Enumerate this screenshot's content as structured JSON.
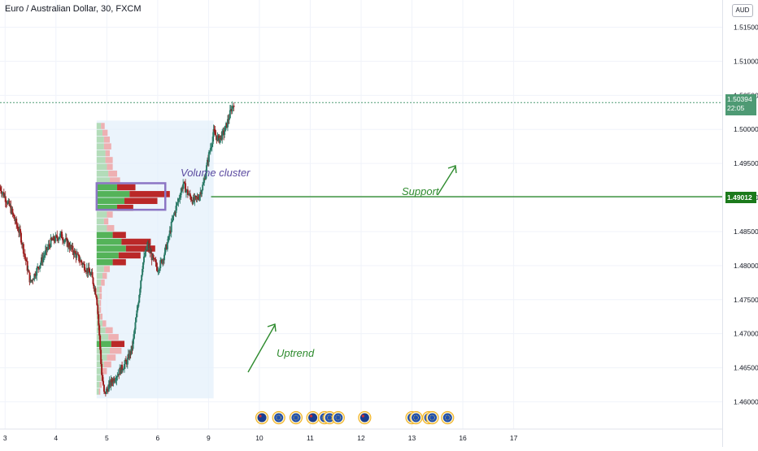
{
  "header": {
    "title": "Euro / Australian Dollar, 30, FXCM",
    "currency": "AUD"
  },
  "price_tags": {
    "last_price": "1.50394",
    "countdown": "22:05",
    "support_price": "1.49012"
  },
  "annotations": {
    "volume_cluster": "Volume cluster",
    "support": "Support",
    "uptrend": "Uptrend"
  },
  "colors": {
    "up": "#26a69a",
    "down": "#ef5350",
    "support_line": "#2e8b2e",
    "cluster_box": "#8b75c4",
    "profile_up": "#4caf50",
    "profile_down": "#b71c1c",
    "range_fill": "#e3f0fb"
  },
  "chart_data": {
    "type": "candlestick",
    "title": "Euro / Australian Dollar, 30, FXCM",
    "ylim": [
      1.456,
      1.519
    ],
    "xlim": [
      2.9,
      17.1
    ],
    "y_ticks": [
      1.46,
      1.465,
      1.47,
      1.475,
      1.48,
      1.485,
      1.49,
      1.495,
      1.5,
      1.505,
      1.51,
      1.515
    ],
    "y_tick_labels": [
      "1.46000",
      "1.46500",
      "1.47000",
      "1.47500",
      "1.48000",
      "1.48500",
      "1.49000",
      "1.49500",
      "1.50000",
      "1.50500",
      "1.51000",
      "1.51500"
    ],
    "x_ticks": [
      3,
      4,
      5,
      6,
      9,
      10,
      11,
      12,
      13,
      16,
      17
    ],
    "x_tick_labels": [
      "3",
      "4",
      "5",
      "6",
      "9",
      "10",
      "11",
      "12",
      "13",
      "16",
      "17"
    ],
    "x_tick_pos": [
      3,
      4,
      5,
      6,
      7,
      8,
      9,
      10,
      11,
      12,
      13
    ],
    "price_path": [
      [
        2.9,
        1.4915
      ],
      [
        3.1,
        1.4885
      ],
      [
        3.3,
        1.4845
      ],
      [
        3.5,
        1.4775
      ],
      [
        3.7,
        1.4805
      ],
      [
        3.9,
        1.4835
      ],
      [
        4.1,
        1.4845
      ],
      [
        4.3,
        1.4825
      ],
      [
        4.5,
        1.4805
      ],
      [
        4.7,
        1.4785
      ],
      [
        4.8,
        1.4755
      ],
      [
        4.85,
        1.47
      ],
      [
        4.9,
        1.464
      ],
      [
        4.95,
        1.461
      ],
      [
        5.05,
        1.4625
      ],
      [
        5.2,
        1.464
      ],
      [
        5.4,
        1.466
      ],
      [
        5.5,
        1.468
      ],
      [
        5.6,
        1.4735
      ],
      [
        5.7,
        1.48
      ],
      [
        5.8,
        1.483
      ],
      [
        5.9,
        1.481
      ],
      [
        6.0,
        1.4795
      ],
      [
        6.1,
        1.481
      ],
      [
        6.2,
        1.4835
      ],
      [
        6.3,
        1.487
      ],
      [
        6.4,
        1.4895
      ],
      [
        6.5,
        1.492
      ],
      [
        6.6,
        1.4905
      ],
      [
        6.7,
        1.4895
      ],
      [
        6.8,
        1.49
      ],
      [
        6.9,
        1.492
      ],
      [
        7.0,
        1.496
      ],
      [
        7.1,
        1.4995
      ],
      [
        7.2,
        1.4985
      ],
      [
        7.3,
        1.4995
      ],
      [
        7.35,
        1.5005
      ],
      [
        7.45,
        1.503
      ],
      [
        7.5,
        1.5039
      ]
    ],
    "support_level": 1.49012,
    "last_price": 1.50394,
    "volume_cluster_box": {
      "x": [
        4.8,
        6.15
      ],
      "y": [
        1.4882,
        1.4921
      ]
    },
    "range_shade": {
      "x": [
        4.8,
        7.1
      ],
      "y": [
        1.4605,
        1.5013
      ]
    },
    "volume_profile": {
      "x_base": 4.8,
      "levels": [
        {
          "p": 1.5005,
          "up": 0.06,
          "down": 0.05
        },
        {
          "p": 1.4995,
          "up": 0.08,
          "down": 0.07
        },
        {
          "p": 1.4985,
          "up": 0.1,
          "down": 0.08
        },
        {
          "p": 1.4975,
          "up": 0.1,
          "down": 0.1
        },
        {
          "p": 1.4965,
          "up": 0.12,
          "down": 0.06
        },
        {
          "p": 1.4955,
          "up": 0.12,
          "down": 0.1
        },
        {
          "p": 1.4945,
          "up": 0.14,
          "down": 0.08
        },
        {
          "p": 1.4935,
          "up": 0.16,
          "down": 0.12
        },
        {
          "p": 1.4925,
          "up": 0.18,
          "down": 0.14
        },
        {
          "p": 1.4915,
          "up": 0.28,
          "down": 0.25
        },
        {
          "p": 1.4905,
          "up": 0.45,
          "down": 0.55
        },
        {
          "p": 1.4895,
          "up": 0.38,
          "down": 0.45
        },
        {
          "p": 1.4885,
          "up": 0.28,
          "down": 0.22
        },
        {
          "p": 1.4875,
          "up": 0.14,
          "down": 0.08
        },
        {
          "p": 1.4865,
          "up": 0.1,
          "down": 0.06
        },
        {
          "p": 1.4855,
          "up": 0.14,
          "down": 0.1
        },
        {
          "p": 1.4845,
          "up": 0.22,
          "down": 0.18
        },
        {
          "p": 1.4835,
          "up": 0.34,
          "down": 0.4
        },
        {
          "p": 1.4825,
          "up": 0.4,
          "down": 0.4
        },
        {
          "p": 1.4815,
          "up": 0.3,
          "down": 0.3
        },
        {
          "p": 1.4805,
          "up": 0.22,
          "down": 0.18
        },
        {
          "p": 1.4795,
          "up": 0.1,
          "down": 0.08
        },
        {
          "p": 1.4785,
          "up": 0.08,
          "down": 0.06
        },
        {
          "p": 1.4775,
          "up": 0.06,
          "down": 0.05
        },
        {
          "p": 1.4765,
          "up": 0.04,
          "down": 0.03
        },
        {
          "p": 1.4755,
          "up": 0.04,
          "down": 0.03
        },
        {
          "p": 1.4745,
          "up": 0.04,
          "down": 0.02
        },
        {
          "p": 1.4735,
          "up": 0.04,
          "down": 0.02
        },
        {
          "p": 1.4725,
          "up": 0.05,
          "down": 0.03
        },
        {
          "p": 1.4715,
          "up": 0.08,
          "down": 0.05
        },
        {
          "p": 1.4705,
          "up": 0.12,
          "down": 0.1
        },
        {
          "p": 1.4695,
          "up": 0.16,
          "down": 0.14
        },
        {
          "p": 1.4685,
          "up": 0.2,
          "down": 0.18
        },
        {
          "p": 1.4675,
          "up": 0.18,
          "down": 0.16
        },
        {
          "p": 1.4665,
          "up": 0.14,
          "down": 0.12
        },
        {
          "p": 1.4655,
          "up": 0.1,
          "down": 0.1
        },
        {
          "p": 1.4645,
          "up": 0.08,
          "down": 0.06
        },
        {
          "p": 1.4635,
          "up": 0.06,
          "down": 0.04
        },
        {
          "p": 1.4625,
          "up": 0.04,
          "down": 0.03
        },
        {
          "p": 1.4615,
          "up": 0.03,
          "down": 0.02
        }
      ]
    },
    "events": [
      {
        "x": 8.05,
        "flag": "AU"
      },
      {
        "x": 8.38,
        "flag": "EU"
      },
      {
        "x": 8.72,
        "flag": "EU"
      },
      {
        "x": 9.05,
        "flag": "AU"
      },
      {
        "x": 9.28,
        "flag": "EU"
      },
      {
        "x": 9.38,
        "flag": "EU"
      },
      {
        "x": 9.55,
        "flag": "EU"
      },
      {
        "x": 10.07,
        "flag": "AU"
      },
      {
        "x": 11.0,
        "flag": "EU"
      },
      {
        "x": 11.08,
        "flag": "EU"
      },
      {
        "x": 11.33,
        "flag": "EU"
      },
      {
        "x": 11.4,
        "flag": "EU"
      },
      {
        "x": 11.7,
        "flag": "EU"
      }
    ]
  }
}
